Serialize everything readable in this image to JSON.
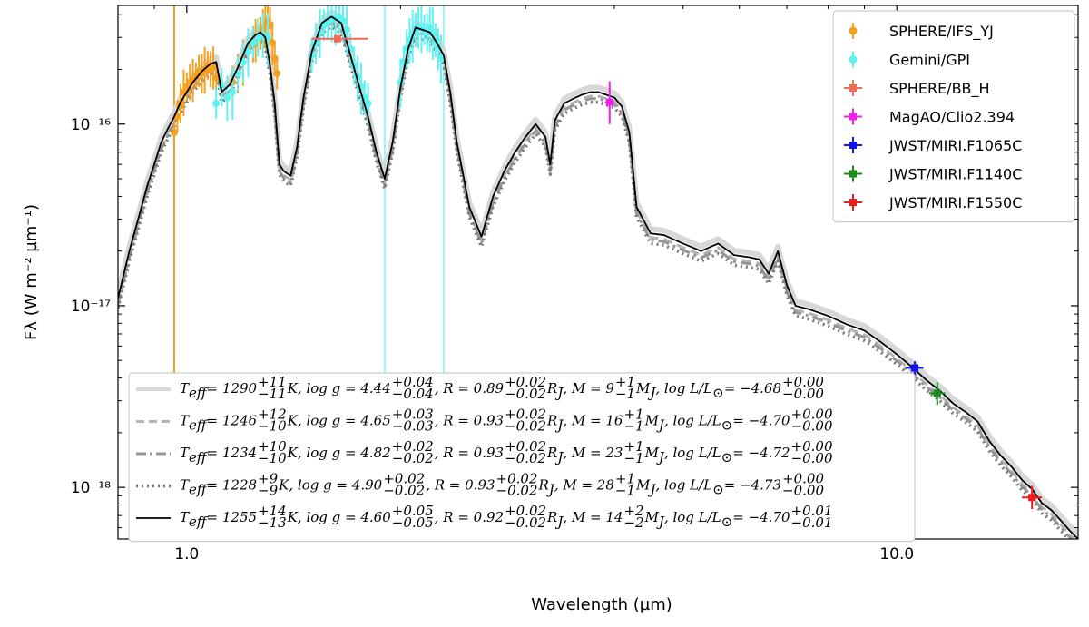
{
  "chart_data": {
    "type": "line",
    "xlabel": "Wavelength (µm)",
    "ylabel": "Fλ (W m⁻² µm⁻¹)",
    "x_scale": "log",
    "y_scale": "log",
    "xlim": [
      0.8,
      18.0
    ],
    "ylim": [
      5.2e-19,
      4.5e-16
    ],
    "x_ticks": [
      {
        "value": 1.0,
        "label": "1.0"
      },
      {
        "value": 10.0,
        "label": "10.0"
      }
    ],
    "y_ticks": [
      {
        "value": 1e-18,
        "label": "10⁻¹⁸"
      },
      {
        "value": 1e-17,
        "label": "10⁻¹⁷"
      },
      {
        "value": 1e-16,
        "label": "10⁻¹⁶"
      }
    ],
    "grid": false,
    "legend_placement": "top-right",
    "model_legend_placement": "bottom-left",
    "model_spectrum": {
      "x": [
        0.8,
        0.83,
        0.86,
        0.88,
        0.9,
        0.92,
        0.94,
        0.96,
        0.98,
        1.0,
        1.02,
        1.05,
        1.08,
        1.1,
        1.12,
        1.15,
        1.18,
        1.2,
        1.22,
        1.25,
        1.27,
        1.29,
        1.31,
        1.33,
        1.35,
        1.37,
        1.4,
        1.43,
        1.46,
        1.5,
        1.55,
        1.58,
        1.6,
        1.65,
        1.7,
        1.75,
        1.8,
        1.85,
        1.9,
        1.95,
        2.0,
        2.05,
        2.1,
        2.15,
        2.2,
        2.25,
        2.3,
        2.35,
        2.4,
        2.5,
        2.6,
        2.7,
        2.8,
        2.9,
        3.0,
        3.1,
        3.2,
        3.25,
        3.3,
        3.4,
        3.5,
        3.6,
        3.7,
        3.8,
        3.9,
        4.0,
        4.1,
        4.2,
        4.3,
        4.5,
        4.7,
        5.0,
        5.3,
        5.6,
        5.9,
        6.2,
        6.4,
        6.6,
        6.8,
        7.0,
        7.2,
        7.5,
        8.0,
        8.5,
        9.0,
        9.5,
        10.0,
        10.5,
        11.0,
        11.5,
        12.0,
        12.5,
        13.0,
        13.5,
        14.0,
        14.5,
        15.0,
        15.5,
        16.0,
        16.5,
        17.0,
        17.5,
        18.0
      ],
      "y": [
        1.1e-17,
        2e-17,
        3.3e-17,
        4.6e-17,
        6e-17,
        7.9e-17,
        9.4e-17,
        1.1e-16,
        1.32e-16,
        1.5e-16,
        1.7e-16,
        1.95e-16,
        2.15e-16,
        2.2e-16,
        1.5e-16,
        1.65e-16,
        2.05e-16,
        2.4e-16,
        2.8e-16,
        3.1e-16,
        3.2e-16,
        3e-16,
        2.1e-16,
        1.3e-16,
        6e-17,
        5.5e-17,
        5.2e-17,
        7.5e-17,
        1.4e-16,
        2.5e-16,
        3.6e-16,
        3.8e-16,
        3.9e-16,
        3.6e-16,
        2.4e-16,
        1.6e-16,
        1.1e-16,
        7e-17,
        5e-17,
        8e-17,
        1.6e-16,
        2.6e-16,
        3.4e-16,
        3.3e-16,
        3.2e-16,
        2.8e-16,
        2.4e-16,
        1.5e-16,
        8e-17,
        3.5e-17,
        2.4e-17,
        4e-17,
        5.5e-17,
        7e-17,
        8.5e-17,
        1e-16,
        8.5e-17,
        6e-17,
        1.05e-16,
        1.3e-16,
        1.38e-16,
        1.45e-16,
        1.5e-16,
        1.5e-16,
        1.45e-16,
        1.4e-16,
        1.25e-16,
        9e-17,
        3.5e-17,
        2.5e-17,
        2.45e-17,
        2.2e-17,
        2e-17,
        2.2e-17,
        1.9e-17,
        1.85e-17,
        1.8e-17,
        1.5e-17,
        2e-17,
        1.3e-17,
        1e-17,
        9.6e-18,
        8.8e-18,
        7.9e-18,
        7.3e-18,
        6.3e-18,
        5.4e-18,
        4.6e-18,
        3.9e-18,
        3.4e-18,
        2.9e-18,
        2.6e-18,
        2.3e-18,
        1.8e-18,
        1.5e-18,
        1.3e-18,
        1.1e-18,
        9.8e-19,
        8.2e-19,
        7.5e-19,
        6.6e-19,
        5.8e-19,
        5.2e-19
      ]
    },
    "series": [
      {
        "name": "SPHERE/IFS_YJ",
        "color": "#f5a01e",
        "x": [
          0.96,
          0.97,
          0.98,
          0.99,
          1.0,
          1.01,
          1.02,
          1.03,
          1.04,
          1.05,
          1.06,
          1.07,
          1.08,
          1.09,
          1.1,
          1.16,
          1.18,
          1.2,
          1.22,
          1.24,
          1.25,
          1.26,
          1.27,
          1.28,
          1.29,
          1.3,
          1.31,
          1.32,
          1.33,
          1.34
        ],
        "y": [
          9e-17,
          1.1e-16,
          1.3e-16,
          1.5e-16,
          1.6e-16,
          1.7e-16,
          1.75e-16,
          1.85e-16,
          1.95e-16,
          1.9e-16,
          2e-16,
          2.1e-16,
          2e-16,
          2.05e-16,
          1.8e-16,
          1.7e-16,
          1.9e-16,
          2.2e-16,
          2.5e-16,
          2.75e-16,
          2.9e-16,
          3e-16,
          3.15e-16,
          3.35e-16,
          3.55e-16,
          3.7e-16,
          3.5e-16,
          2.8e-16,
          2.3e-16,
          1.9e-16
        ]
      },
      {
        "name": "Gemini/GPI",
        "color": "#5ef2f2",
        "x": [
          1.1,
          1.12,
          1.14,
          1.16,
          1.18,
          1.2,
          1.22,
          1.24,
          1.26,
          1.28,
          1.3,
          1.5,
          1.52,
          1.54,
          1.56,
          1.58,
          1.6,
          1.62,
          1.64,
          1.66,
          1.68,
          1.7,
          1.72,
          1.74,
          1.76,
          1.78,
          1.8,
          2.0,
          2.02,
          2.04,
          2.06,
          2.08,
          2.1,
          2.12,
          2.14,
          2.16,
          2.18,
          2.2,
          2.22,
          2.24,
          2.26,
          2.28
        ],
        "y": [
          1.3e-16,
          1.6e-16,
          1.4e-16,
          1.5e-16,
          1.9e-16,
          2.2e-16,
          2.5e-16,
          2.8e-16,
          3e-16,
          3.1e-16,
          3e-16,
          2.4e-16,
          2.8e-16,
          3.2e-16,
          3.5e-16,
          3.7e-16,
          3.8e-16,
          3.85e-16,
          3.9e-16,
          3.7e-16,
          3.3e-16,
          2.6e-16,
          2.1e-16,
          1.8e-16,
          1.6e-16,
          1.4e-16,
          1.3e-16,
          1.7e-16,
          2.2e-16,
          2.6e-16,
          2.9e-16,
          3.1e-16,
          3.3e-16,
          3.4e-16,
          3.4e-16,
          3.3e-16,
          3.2e-16,
          3.35e-16,
          3.2e-16,
          2.9e-16,
          2.6e-16,
          2.3e-16
        ]
      }
    ],
    "error_points": [
      {
        "name": "SPHERE/BB_H",
        "color": "#f26b55",
        "x": 1.63,
        "y": 2.95e-16,
        "x_err": [
          1.5,
          1.8
        ],
        "y_err": [
          2.85e-16,
          3.05e-16
        ]
      },
      {
        "name": "MagAO/Clio2.394",
        "color": "#f020e8",
        "x": 3.94,
        "y": 1.32e-16,
        "x_err": [
          3.88,
          4.0
        ],
        "y_err": [
          1e-16,
          1.72e-16
        ]
      },
      {
        "name": "JWST/MIRI.F1065C",
        "color": "#1515f0",
        "x": 10.6,
        "y": 4.55e-18,
        "x_err": [
          10.3,
          10.9
        ],
        "y_err": [
          4.15e-18,
          4.95e-18
        ]
      },
      {
        "name": "JWST/MIRI.F1140C",
        "color": "#1a8a1a",
        "x": 11.4,
        "y": 3.3e-18,
        "x_err": [
          11.1,
          11.7
        ],
        "y_err": [
          2.85e-18,
          3.8e-18
        ]
      },
      {
        "name": "JWST/MIRI.F1550C",
        "color": "#ee1c1c",
        "x": 15.5,
        "y": 8.8e-19,
        "x_err": [
          15.0,
          16.0
        ],
        "y_err": [
          7.6e-19,
          1.02e-18
        ]
      }
    ],
    "vertical_lines": [
      {
        "x": 0.96,
        "color": "#f5a01e"
      },
      {
        "x": 1.9,
        "color": "#9ef5f5"
      },
      {
        "x": 2.3,
        "color": "#9ef5f5"
      }
    ],
    "model_legend": [
      {
        "style": "solid-light",
        "color": "#d8d8d8",
        "teff": "1290",
        "teff_up": "+11",
        "teff_lo": "−11",
        "logg": "4.44",
        "logg_up": "+0.04",
        "logg_lo": "−0.04",
        "r": "0.89",
        "r_up": "+0.02",
        "r_lo": "−0.02",
        "m": "9",
        "m_up": "+1",
        "m_lo": "−1",
        "logl": "−4.68",
        "logl_up": "+0.00",
        "logl_lo": "−0.00"
      },
      {
        "style": "dashed",
        "color": "#b4b4b4",
        "teff": "1246",
        "teff_up": "+12",
        "teff_lo": "−10",
        "logg": "4.65",
        "logg_up": "+0.03",
        "logg_lo": "−0.03",
        "r": "0.93",
        "r_up": "+0.02",
        "r_lo": "−0.02",
        "m": "16",
        "m_up": "+1",
        "m_lo": "−1",
        "logl": "−4.70",
        "logl_up": "+0.00",
        "logl_lo": "−0.00"
      },
      {
        "style": "dashdot",
        "color": "#969696",
        "teff": "1234",
        "teff_up": "+10",
        "teff_lo": "−10",
        "logg": "4.82",
        "logg_up": "+0.02",
        "logg_lo": "−0.02",
        "r": "0.93",
        "r_up": "+0.02",
        "r_lo": "−0.02",
        "m": "23",
        "m_up": "+1",
        "m_lo": "−1",
        "logl": "−4.72",
        "logl_up": "+0.00",
        "logl_lo": "−0.00"
      },
      {
        "style": "dotted",
        "color": "#7a7a7a",
        "teff": "1228",
        "teff_up": "+9",
        "teff_lo": "−9",
        "logg": "4.90",
        "logg_up": "+0.02",
        "logg_lo": "−0.02",
        "r": "0.93",
        "r_up": "+0.02",
        "r_lo": "−0.02",
        "m": "28",
        "m_up": "+1",
        "m_lo": "−1",
        "logl": "−4.73",
        "logl_up": "+0.00",
        "logl_lo": "−0.00"
      },
      {
        "style": "solid",
        "color": "#000000",
        "teff": "1255",
        "teff_up": "+14",
        "teff_lo": "−13",
        "logg": "4.60",
        "logg_up": "+0.05",
        "logg_lo": "−0.05",
        "r": "0.92",
        "r_up": "+0.02",
        "r_lo": "−0.02",
        "m": "14",
        "m_up": "+2",
        "m_lo": "−2",
        "logl": "−4.70",
        "logl_up": "+0.01",
        "logl_lo": "−0.01"
      }
    ]
  }
}
